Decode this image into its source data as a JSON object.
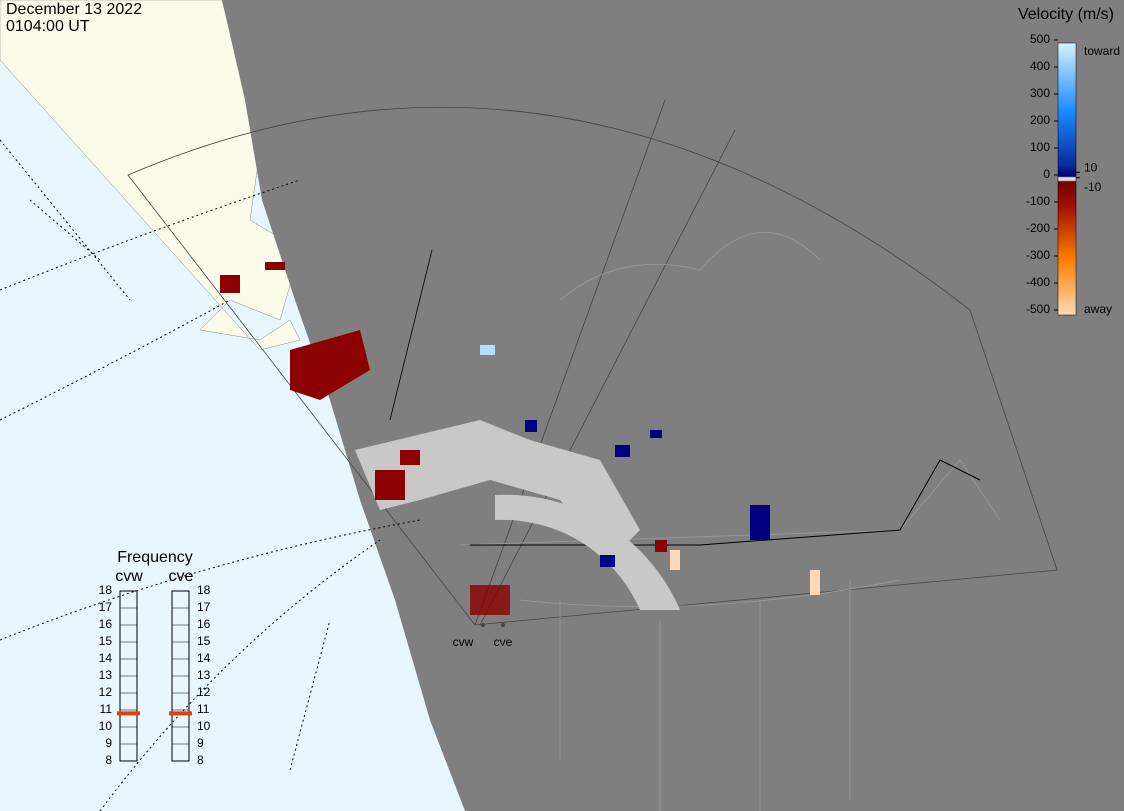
{
  "header": {
    "date": "December 13 2022",
    "time": "0104:00 UT"
  },
  "velocity_scale": {
    "title": "Velocity (m/s)",
    "ylim": [
      -500,
      500
    ],
    "ticks": [
      500,
      400,
      300,
      200,
      100,
      0,
      -100,
      -200,
      -300,
      -400,
      -500
    ],
    "limit_ticks": [
      10,
      -10
    ],
    "toward": "toward",
    "away": "away"
  },
  "frequency": {
    "title": "Frequency",
    "ylim": [
      8,
      18
    ],
    "ticks": [
      18,
      17,
      16,
      15,
      14,
      13,
      12,
      11,
      10,
      9,
      8
    ],
    "radars": [
      {
        "name": "cvw",
        "value": 10.8
      },
      {
        "name": "cve",
        "value": 10.8
      }
    ]
  },
  "radar_sites": [
    "cvw",
    "cve"
  ]
}
